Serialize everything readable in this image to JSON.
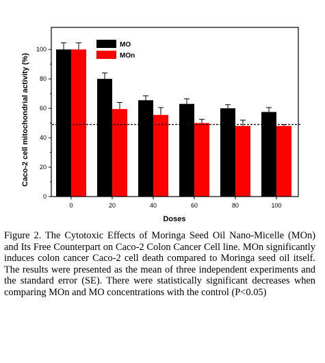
{
  "chart_data": {
    "type": "bar",
    "categories": [
      "0",
      "20",
      "40",
      "60",
      "80",
      "100"
    ],
    "series": [
      {
        "name": "MO",
        "color": "#000000",
        "values": [
          100,
          80,
          65.5,
          63,
          60,
          57.5
        ],
        "errors": [
          4.5,
          4,
          3,
          3.5,
          2.5,
          3
        ]
      },
      {
        "name": "MOn",
        "color": "#ff0000",
        "values": [
          100,
          59.5,
          55.5,
          50,
          48,
          48
        ],
        "errors": [
          4.5,
          4.5,
          5,
          2.5,
          4,
          1
        ]
      }
    ],
    "yticks": [
      "0",
      "20",
      "40",
      "60",
      "80",
      "100"
    ],
    "ylim": [
      0,
      115
    ],
    "xlabel": "Doses",
    "ylabel": "Caco-2 cell mitochondrial activity (%)",
    "reference_line": 49,
    "grid": false,
    "legend_position": "top-center"
  },
  "caption": "Figure 2. The Cytotoxic Effects of Moringa Seed Oil Nano-Micelle (MOn) and Its Free Counterpart on Caco-2 Colon Cancer Cell line. MOn significantly induces colon cancer Caco-2 cell death compared to Moringa seed oil itself. The results were presented as the mean of three independent experiments and the standard error (SE). There were statistically significant decreases when comparing MOn and MO concentrations with the control (P<0.05)"
}
